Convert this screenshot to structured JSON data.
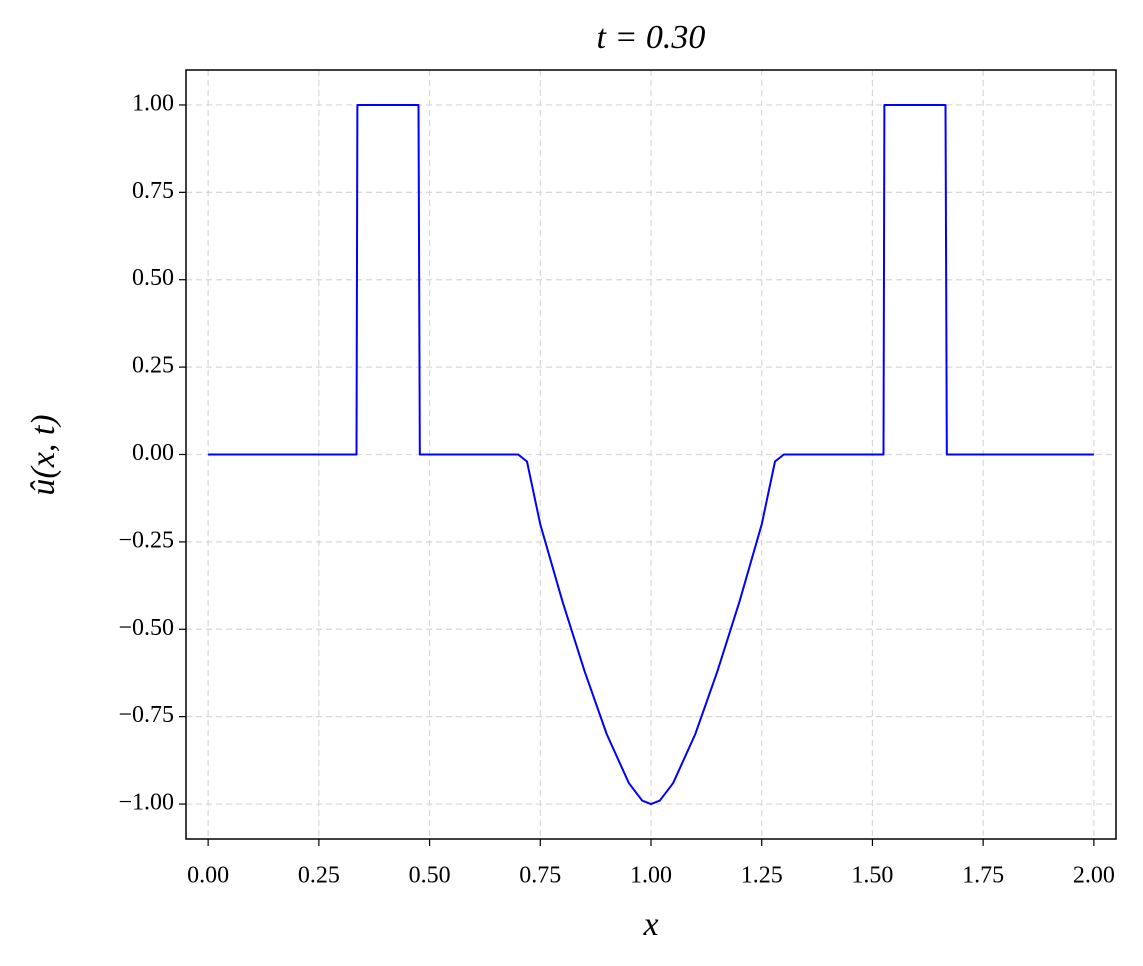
{
  "chart_data": {
    "type": "line",
    "title": "t = 0.30",
    "x_label": "x",
    "y_label": "û(x, t)",
    "grid": true,
    "xlim": [
      -0.05,
      2.05
    ],
    "ylim": [
      -1.1,
      1.1
    ],
    "xticks": [
      {
        "value": 0,
        "label": "0.00"
      },
      {
        "value": 0.25,
        "label": "0.25"
      },
      {
        "value": 0.5,
        "label": "0.50"
      },
      {
        "value": 0.75,
        "label": "0.75"
      },
      {
        "value": 1,
        "label": "1.00"
      },
      {
        "value": 1.25,
        "label": "1.25"
      },
      {
        "value": 1.5,
        "label": "1.50"
      },
      {
        "value": 1.75,
        "label": "1.75"
      },
      {
        "value": 2,
        "label": "2.00"
      }
    ],
    "yticks": [
      {
        "value": -1,
        "label": "−1.00"
      },
      {
        "value": -0.75,
        "label": "−0.75"
      },
      {
        "value": -0.5,
        "label": "−0.50"
      },
      {
        "value": -0.25,
        "label": "−0.25"
      },
      {
        "value": 0,
        "label": "0.00"
      },
      {
        "value": 0.25,
        "label": "0.25"
      },
      {
        "value": 0.5,
        "label": "0.50"
      },
      {
        "value": 0.75,
        "label": "0.75"
      },
      {
        "value": 1,
        "label": "1.00"
      }
    ],
    "x": [
      0,
      0.335,
      0.337,
      0.475,
      0.478,
      0.7,
      0.72,
      0.75,
      0.8,
      0.85,
      0.9,
      0.95,
      0.98,
      1.0,
      1.02,
      1.05,
      1.1,
      1.15,
      1.2,
      1.25,
      1.28,
      1.3,
      1.525,
      1.527,
      1.665,
      1.668,
      2.0
    ],
    "series": [
      {
        "color": "#0000ff",
        "values": [
          0,
          0,
          1,
          1,
          0,
          0,
          -0.02,
          -0.2,
          -0.42,
          -0.62,
          -0.8,
          -0.94,
          -0.99,
          -1.0,
          -0.99,
          -0.94,
          -0.8,
          -0.62,
          -0.42,
          -0.2,
          -0.02,
          0,
          0,
          1,
          1,
          0,
          0
        ]
      }
    ]
  }
}
